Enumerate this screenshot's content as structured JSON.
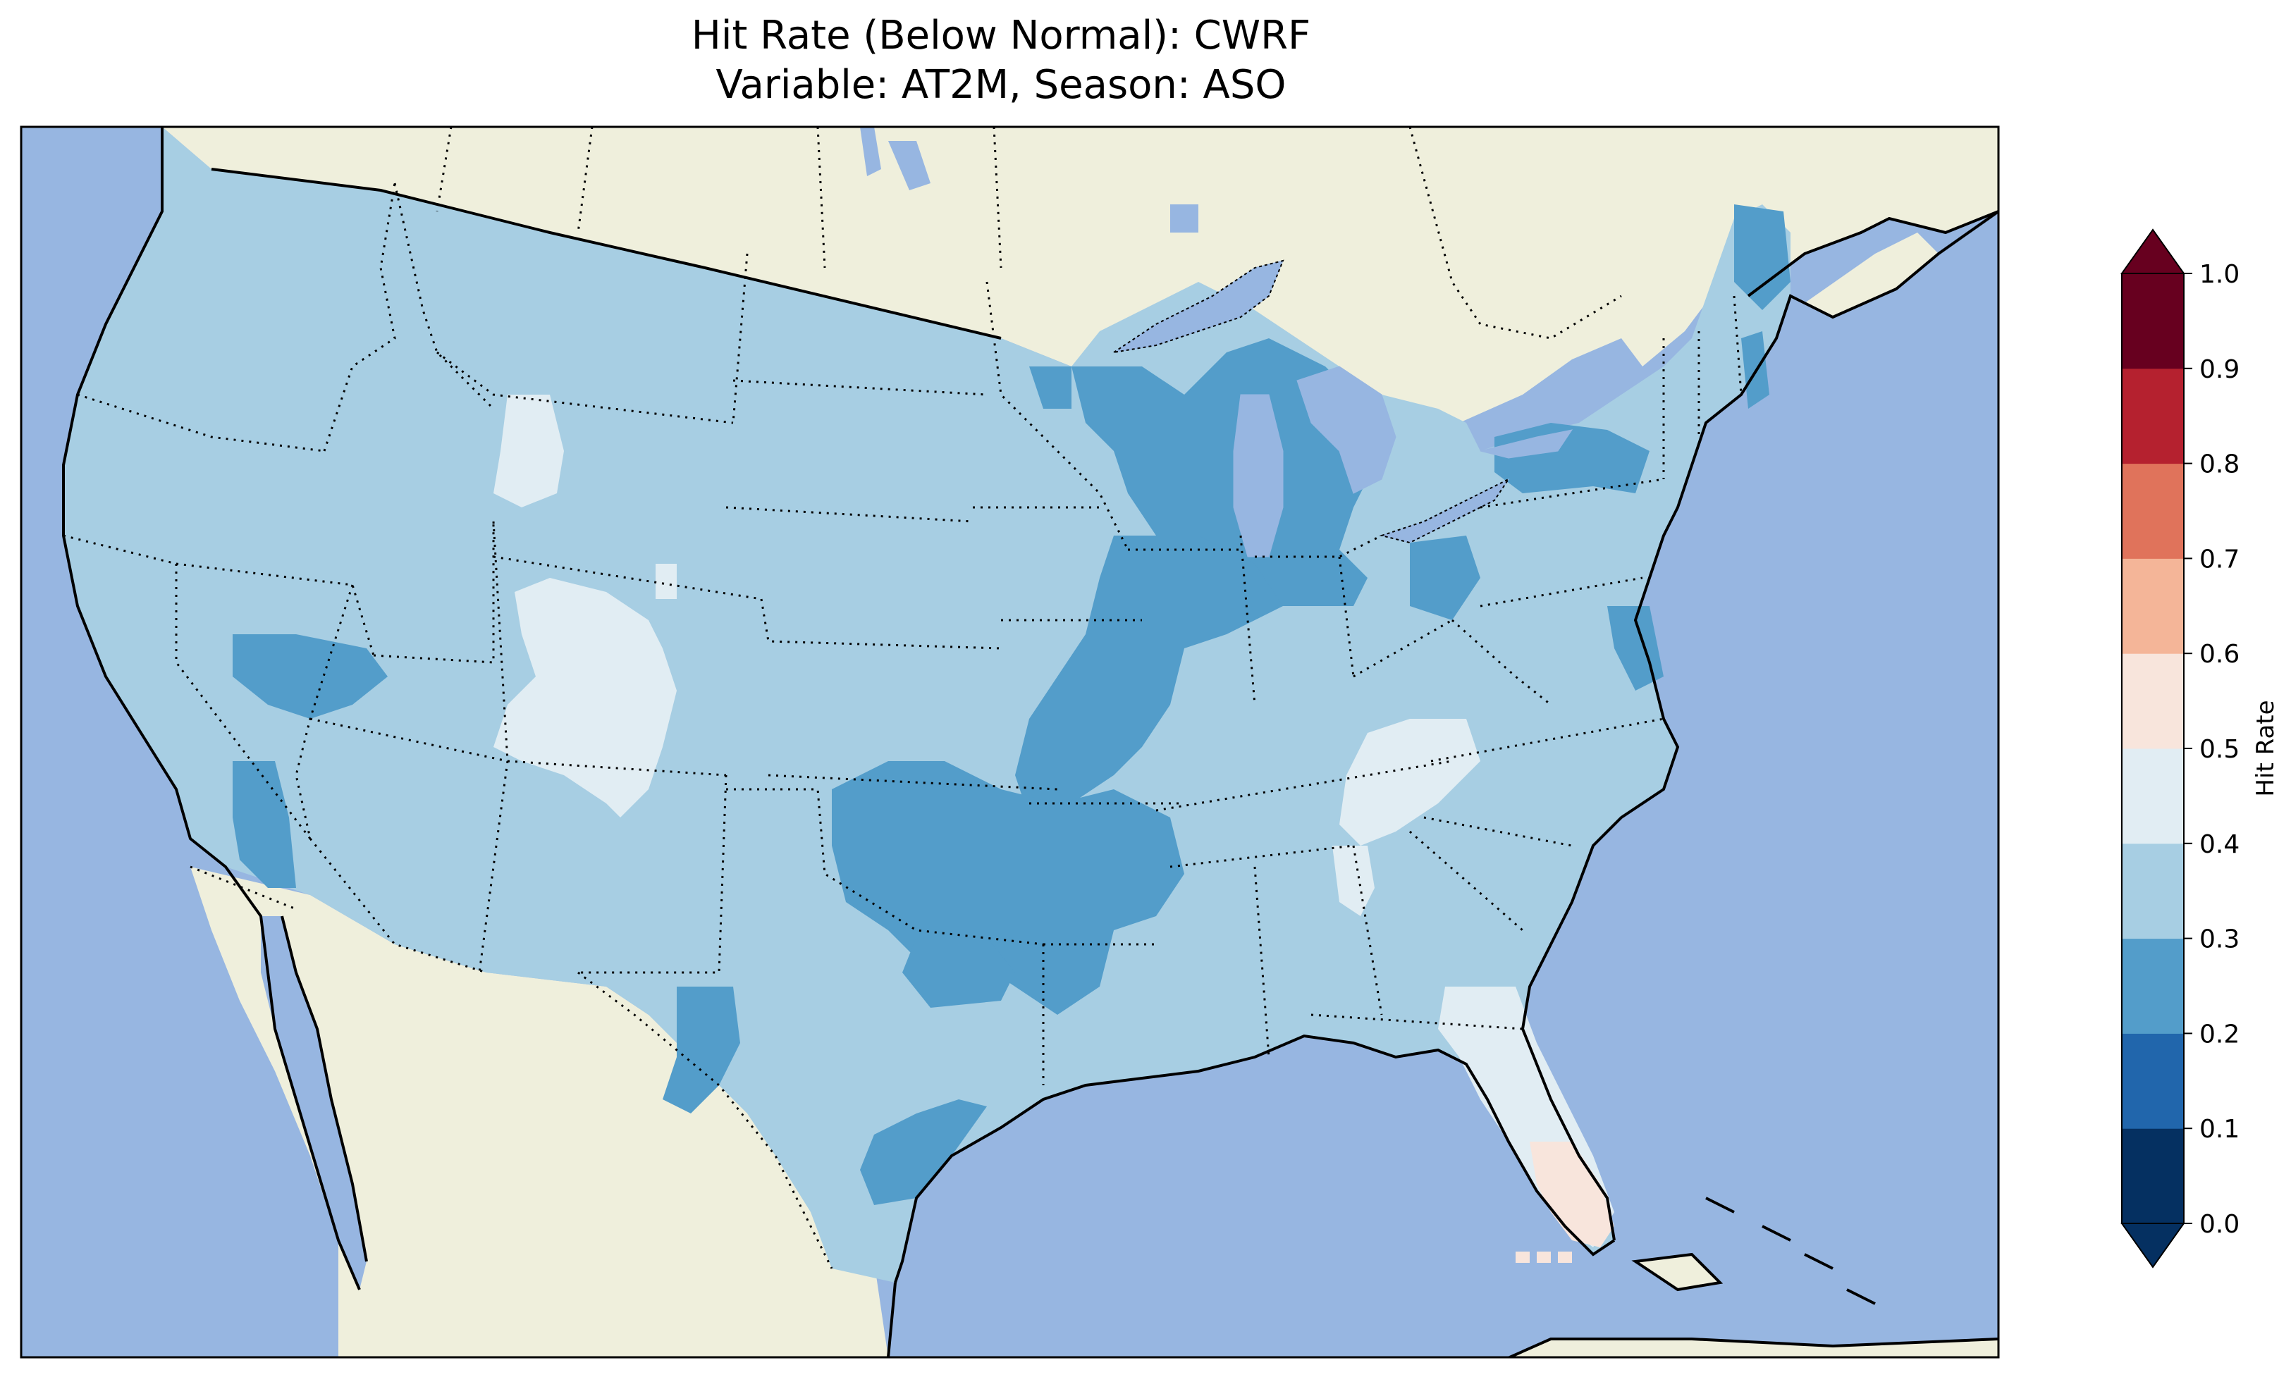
{
  "title": {
    "line1": "Hit Rate (Below Normal): CWRF",
    "line2": "Variable: AT2M, Season: ASO"
  },
  "colors": {
    "ocean": "#97b6e1",
    "land": "#efefdc",
    "lakes": "#97b6e1"
  },
  "colorbar": {
    "label": "Hit Rate",
    "extend": "both",
    "ticks": [
      "0.0",
      "0.1",
      "0.2",
      "0.3",
      "0.4",
      "0.5",
      "0.6",
      "0.7",
      "0.8",
      "0.9",
      "1.0"
    ],
    "bins": [
      {
        "range": [
          0.0,
          0.1
        ],
        "color": "#053061"
      },
      {
        "range": [
          0.1,
          0.2
        ],
        "color": "#2166ac"
      },
      {
        "range": [
          0.2,
          0.3
        ],
        "color": "#539dca"
      },
      {
        "range": [
          0.3,
          0.4
        ],
        "color": "#a7cee3"
      },
      {
        "range": [
          0.4,
          0.5
        ],
        "color": "#e1edf3"
      },
      {
        "range": [
          0.5,
          0.6
        ],
        "color": "#f8e5dc"
      },
      {
        "range": [
          0.6,
          0.7
        ],
        "color": "#f4b598"
      },
      {
        "range": [
          0.7,
          0.8
        ],
        "color": "#e0735b"
      },
      {
        "range": [
          0.8,
          0.9
        ],
        "color": "#b5212f"
      },
      {
        "range": [
          0.9,
          1.0
        ],
        "color": "#67001f"
      }
    ]
  },
  "map_fields": [
    {
      "region": "conus",
      "hit_rate_bin": "0.3-0.4"
    },
    {
      "region": "upper-midwest-great-lakes",
      "hit_rate_bin": "0.2-0.3"
    },
    {
      "region": "mississippi-valley",
      "hit_rate_bin": "0.2-0.3"
    },
    {
      "region": "oklahoma-arkansas",
      "hit_rate_bin": "0.2-0.3"
    },
    {
      "region": "central-texas",
      "hit_rate_bin": "0.2-0.3"
    },
    {
      "region": "texas-coast",
      "hit_rate_bin": "0.2-0.3"
    },
    {
      "region": "northern-nevada",
      "hit_rate_bin": "0.2-0.3"
    },
    {
      "region": "california-nevada-border",
      "hit_rate_bin": "0.2-0.3"
    },
    {
      "region": "west-texas",
      "hit_rate_bin": "0.2-0.3"
    },
    {
      "region": "northern-maine",
      "hit_rate_bin": "0.2-0.3"
    },
    {
      "region": "upstate-new-york",
      "hit_rate_bin": "0.2-0.3"
    },
    {
      "region": "ohio",
      "hit_rate_bin": "0.2-0.3"
    },
    {
      "region": "colorado-utah",
      "hit_rate_bin": "0.4-0.5"
    },
    {
      "region": "idaho-wyoming",
      "hit_rate_bin": "0.4-0.5"
    },
    {
      "region": "tennessee-carolinas",
      "hit_rate_bin": "0.4-0.5"
    },
    {
      "region": "alabama-georgia",
      "hit_rate_bin": "0.4-0.5"
    },
    {
      "region": "florida",
      "hit_rate_bin": "0.4-0.5"
    },
    {
      "region": "south-florida",
      "hit_rate_bin": "0.5-0.6"
    }
  ]
}
